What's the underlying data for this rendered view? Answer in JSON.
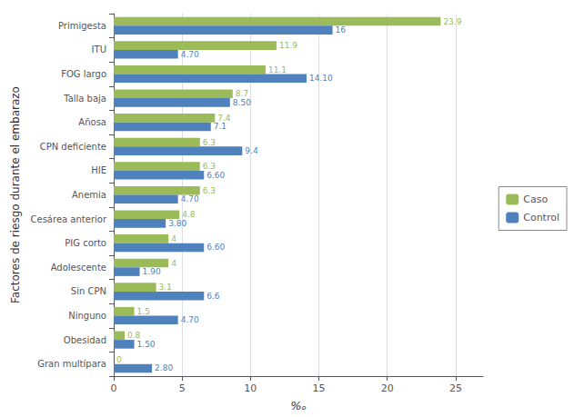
{
  "chart_data": {
    "type": "bar",
    "orientation": "horizontal",
    "xlabel": "%ₒ",
    "ylabel": "Factores de riesgo durante el embarazo",
    "categories": [
      "Primigesta",
      "ITU",
      "FOG largo",
      "Talla baja",
      "Añosa",
      "CPN deficiente",
      "HIE",
      "Anemia",
      "Cesárea anterior",
      "PIG corto",
      "Adolescente",
      "Sin CPN",
      "Ninguno",
      "Obesidad",
      "Gran multípara"
    ],
    "series": [
      {
        "name": "Caso",
        "color": "#9BBB59",
        "values": [
          23.9,
          11.9,
          11.1,
          8.7,
          7.4,
          6.3,
          6.3,
          6.3,
          4.8,
          4,
          4,
          3.1,
          1.5,
          0.8,
          0
        ],
        "value_labels": [
          "23.9",
          "11.9",
          "11.1",
          "8.7",
          "7.4",
          "6.3",
          "6.3",
          "6.3",
          "4.8",
          "4",
          "4",
          "3.1",
          "1.5",
          "0.8",
          "0"
        ]
      },
      {
        "name": "Control",
        "color": "#4F81BD",
        "values": [
          16,
          4.7,
          14.1,
          8.5,
          7.1,
          9.4,
          6.6,
          4.7,
          3.8,
          6.6,
          1.9,
          6.6,
          4.7,
          1.5,
          2.8
        ],
        "value_labels": [
          "16",
          "4.70",
          "14.10",
          "8.50",
          "7.1",
          "9.4",
          "6.60",
          "4.70",
          "3.80",
          "6.60",
          "1.90",
          "6.6",
          "4.70",
          "1.50",
          "2.80"
        ]
      }
    ],
    "xlim": [
      0,
      27
    ],
    "xticks": [
      0,
      5,
      10,
      15,
      20,
      25
    ],
    "grid": true,
    "legend": "right",
    "data_labels": true
  }
}
